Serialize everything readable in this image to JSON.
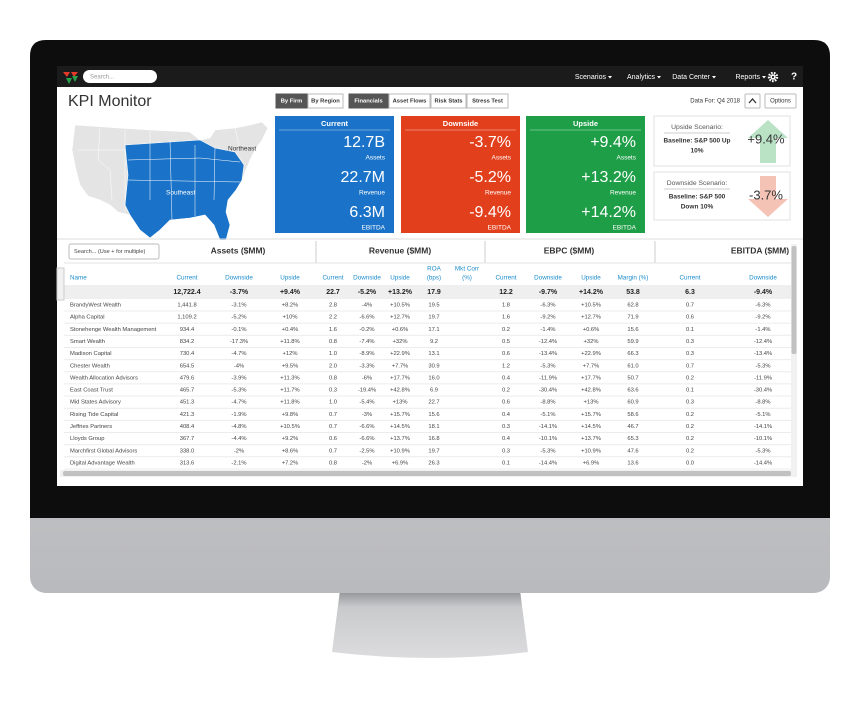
{
  "nav": {
    "search_placeholder": "Search...",
    "items": [
      "Scenarios",
      "Analytics",
      "Data Center",
      "Reports"
    ],
    "help": "?"
  },
  "header": {
    "title": "KPI Monitor",
    "view_buttons": [
      "By Firm",
      "By Region"
    ],
    "tabs": [
      "Financials",
      "Asset Flows",
      "Risk Stats",
      "Stress Test"
    ],
    "data_for": "Data For: Q4 2018",
    "options": "Options"
  },
  "map": {
    "labels": [
      "Northeast",
      "Southeast"
    ]
  },
  "kpi_cards": [
    {
      "title": "Current",
      "rows": [
        {
          "value": "12.7B",
          "label": "Assets"
        },
        {
          "value": "22.7M",
          "label": "Revenue"
        },
        {
          "value": "6.3M",
          "label": "EBITDA"
        }
      ]
    },
    {
      "title": "Downside",
      "rows": [
        {
          "value": "-3.7%",
          "label": "Assets"
        },
        {
          "value": "-5.2%",
          "label": "Revenue"
        },
        {
          "value": "-9.4%",
          "label": "EBITDA"
        }
      ]
    },
    {
      "title": "Upside",
      "rows": [
        {
          "value": "+9.4%",
          "label": "Assets"
        },
        {
          "value": "+13.2%",
          "label": "Revenue"
        },
        {
          "value": "+14.2%",
          "label": "EBITDA"
        }
      ]
    }
  ],
  "scenarios": [
    {
      "title": "Upside Scenario:",
      "baseline_lines": [
        "Baseline: S&P 500 Up",
        "10%"
      ],
      "value": "+9.4%"
    },
    {
      "title": "Downside Scenario:",
      "baseline_lines": [
        "Baseline: S&P 500",
        "Down 10%"
      ],
      "value": "-3.7%"
    }
  ],
  "table": {
    "search_placeholder": "Search... (Use + for multiple)",
    "groups": [
      "Assets ($MM)",
      "Revenue ($MM)",
      "EBPC ($MM)",
      "EBITDA ($MM)"
    ],
    "columns": [
      [
        "Name"
      ],
      [
        "Current"
      ],
      [
        "Downside"
      ],
      [
        "Upside"
      ],
      [
        "Current"
      ],
      [
        "Downside"
      ],
      [
        "Upside"
      ],
      [
        "ROA",
        "(bps)"
      ],
      [
        "Mkt Corr",
        "(%)"
      ],
      [
        "Current"
      ],
      [
        "Downside"
      ],
      [
        "Upside"
      ],
      [
        "Margin (%)"
      ],
      [
        "Current"
      ],
      [
        "Downside"
      ]
    ],
    "totals": [
      "12,722.4",
      "-3.7%",
      "+9.4%",
      "22.7",
      "-5.2%",
      "+13.2%",
      "17.9",
      "12.2",
      "-9.7%",
      "+14.2%",
      "53.8",
      "6.3",
      "-9.4%"
    ],
    "rows": [
      [
        "BrandyWest Wealth",
        "1,441.8",
        "-3.1%",
        "+8.2%",
        "2.8",
        "-4%",
        "+10.5%",
        "19.5",
        "1.8",
        "-6.3%",
        "+10.5%",
        "62.8",
        "0.7",
        "-6.3%"
      ],
      [
        "Alpha Capital",
        "1,109.2",
        "-5.2%",
        "+10%",
        "2.2",
        "-6.6%",
        "+12.7%",
        "19.7",
        "1.6",
        "-9.2%",
        "+12.7%",
        "71.9",
        "0.6",
        "-9.2%"
      ],
      [
        "Stonehenge Wealth Management",
        "934.4",
        "-0.1%",
        "+0.4%",
        "1.6",
        "-0.2%",
        "+0.6%",
        "17.1",
        "0.2",
        "-1.4%",
        "+0.6%",
        "15.6",
        "0.1",
        "-1.4%"
      ],
      [
        "Smart Wealth",
        "834.2",
        "-17.3%",
        "+11.8%",
        "0.8",
        "-7.4%",
        "+32%",
        "9.2",
        "0.5",
        "-12.4%",
        "+32%",
        "59.9",
        "0.3",
        "-12.4%"
      ],
      [
        "Madison Capital",
        "730.4",
        "-4.7%",
        "+12%",
        "1.0",
        "-8.9%",
        "+22.9%",
        "13.1",
        "0.6",
        "-13.4%",
        "+22.9%",
        "66.3",
        "0.3",
        "-13.4%"
      ],
      [
        "Chester Wealth",
        "654.5",
        "-4%",
        "+9.5%",
        "2.0",
        "-3.3%",
        "+7.7%",
        "30.9",
        "1.2",
        "-5.3%",
        "+7.7%",
        "61.0",
        "0.7",
        "-5.3%"
      ],
      [
        "Wealth Allocation Advisors",
        "479.6",
        "-3.9%",
        "+11.3%",
        "0.8",
        "-6%",
        "+17.7%",
        "16.0",
        "0.4",
        "-11.9%",
        "+17.7%",
        "50.7",
        "0.2",
        "-11.9%"
      ],
      [
        "East Coast Trust",
        "465.7",
        "-5.3%",
        "+11.7%",
        "0.3",
        "-19.4%",
        "+42.8%",
        "6.9",
        "0.2",
        "-30.4%",
        "+42.8%",
        "63.6",
        "0.1",
        "-30.4%"
      ],
      [
        "Mid States Advisory",
        "451.3",
        "-4.7%",
        "+11.8%",
        "1.0",
        "-5.4%",
        "+13%",
        "22.7",
        "0.6",
        "-8.8%",
        "+13%",
        "60.9",
        "0.3",
        "-8.8%"
      ],
      [
        "Rising Tide Capital",
        "421.3",
        "-1.9%",
        "+9.8%",
        "0.7",
        "-3%",
        "+15.7%",
        "15.6",
        "0.4",
        "-5.1%",
        "+15.7%",
        "58.6",
        "0.2",
        "-5.1%"
      ],
      [
        "Jeffries Partners",
        "408.4",
        "-4.8%",
        "+10.5%",
        "0.7",
        "-6.6%",
        "+14.5%",
        "18.1",
        "0.3",
        "-14.1%",
        "+14.5%",
        "46.7",
        "0.2",
        "-14.1%"
      ],
      [
        "Lloyds Group",
        "367.7",
        "-4.4%",
        "+9.2%",
        "0.6",
        "-6.6%",
        "+13.7%",
        "16.8",
        "0.4",
        "-10.1%",
        "+13.7%",
        "65.3",
        "0.2",
        "-10.1%"
      ],
      [
        "Marchfirst Global Advisors",
        "338.0",
        "-2%",
        "+8.6%",
        "0.7",
        "-2.5%",
        "+10.9%",
        "19.7",
        "0.3",
        "-5.3%",
        "+10.9%",
        "47.6",
        "0.2",
        "-5.3%"
      ],
      [
        "Digital Advantage Wealth",
        "313.6",
        "-2.1%",
        "+7.2%",
        "0.8",
        "-2%",
        "+6.9%",
        "26.3",
        "0.1",
        "-14.4%",
        "+6.9%",
        "13.6",
        "0.0",
        "-14.4%"
      ]
    ]
  }
}
